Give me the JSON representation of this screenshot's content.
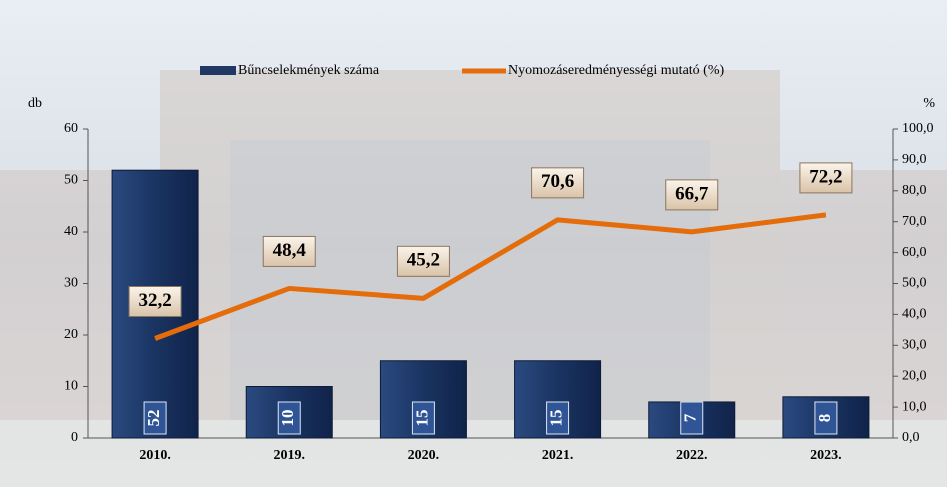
{
  "chart_data": {
    "type": "bar",
    "y_label": "db",
    "y2_label": "%",
    "categories": [
      "2010.",
      "2019.",
      "2020.",
      "2021.",
      "2022.",
      "2023."
    ],
    "series": [
      {
        "name": "Bűncselekmények száma",
        "type": "bar",
        "color": "#1f3864",
        "values": [
          52,
          10,
          15,
          15,
          7,
          8
        ]
      },
      {
        "name": "Nyomozáseredményességi mutató (%)",
        "type": "line",
        "axis": "y2",
        "color": "#e46c0a",
        "values": [
          32.2,
          48.4,
          45.2,
          70.6,
          66.7,
          72.2
        ],
        "value_labels": [
          "32,2",
          "48,4",
          "45,2",
          "70,6",
          "66,7",
          "72,2"
        ]
      }
    ],
    "ylim": [
      0,
      60
    ],
    "yticks": [
      0,
      10,
      20,
      30,
      40,
      50,
      60
    ],
    "y2lim": [
      0,
      100
    ],
    "y2ticks": [
      {
        "value": 0,
        "label": "0,0"
      },
      {
        "value": 10,
        "label": "10,0"
      },
      {
        "value": 20,
        "label": "20,0"
      },
      {
        "value": 30,
        "label": "30,0"
      },
      {
        "value": 40,
        "label": "40,0"
      },
      {
        "value": 50,
        "label": "50,0"
      },
      {
        "value": 60,
        "label": "60,0"
      },
      {
        "value": 70,
        "label": "70,0"
      },
      {
        "value": 80,
        "label": "80,0"
      },
      {
        "value": 90,
        "label": "90,0"
      },
      {
        "value": 100,
        "label": "100,0"
      }
    ],
    "grid": false,
    "legend": "top"
  }
}
